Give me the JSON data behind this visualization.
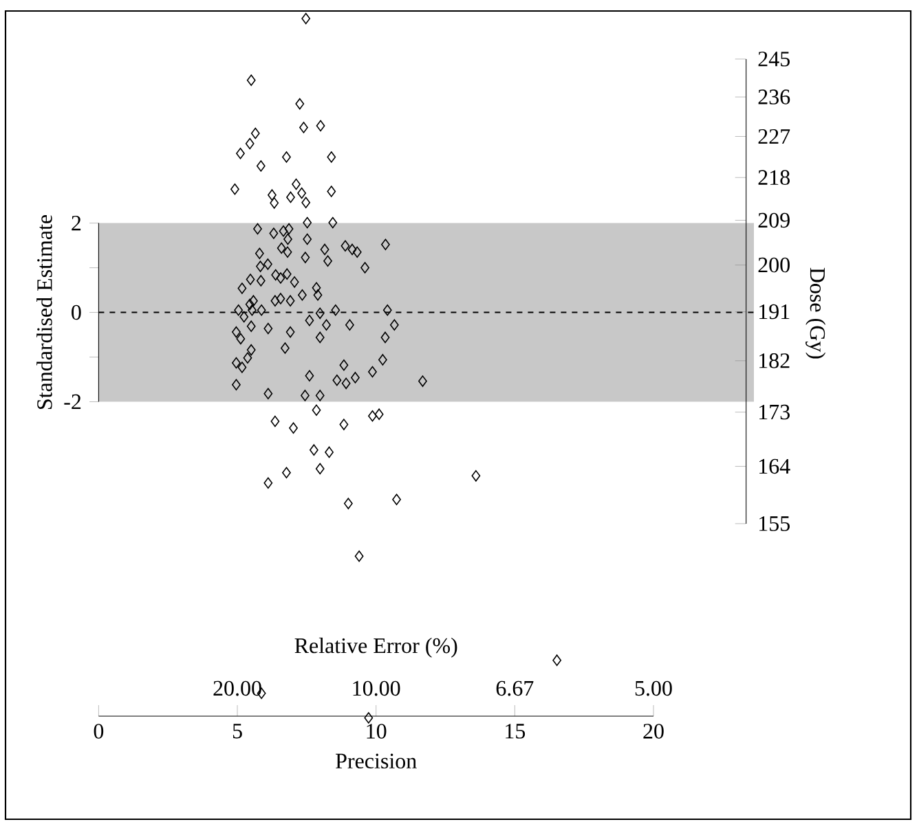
{
  "chart_data": {
    "type": "scatter",
    "xlabel": "Precision",
    "ylabel": "Standardised Estimate",
    "y2label": "Dose (Gy)",
    "annotations": [
      "Relative Error (%)",
      "20.00",
      "10.00",
      "6.67",
      "5.00"
    ],
    "xlim": [
      0,
      20
    ],
    "xticks": [
      0,
      5,
      10,
      15,
      20
    ],
    "ylim": [
      -11.35,
      6.75
    ],
    "yticks": [
      -2,
      {
        "value": -1,
        "label": null
      },
      0,
      {
        "value": 1,
        "label": null
      },
      2
    ],
    "y2lim": [
      155,
      245
    ],
    "y2ticks": [
      155,
      164,
      173,
      182,
      191,
      200,
      209,
      218,
      227,
      236,
      245
    ],
    "log": "y2",
    "marker": "diamond",
    "color": "#000000",
    "bands": [
      {
        "axis": "y",
        "from": -2,
        "to": 2,
        "color": "#c8c8c8"
      }
    ],
    "ref_lines": [
      {
        "axis": "y",
        "value": 0,
        "line_style": "dashed",
        "color": "#000000"
      }
    ],
    "x": [
      7.47,
      5.5,
      7.25,
      7.39,
      8.0,
      5.65,
      5.45,
      5.11,
      6.77,
      8.39,
      5.85,
      4.91,
      6.25,
      6.33,
      7.12,
      6.92,
      7.32,
      7.47,
      8.39,
      7.52,
      8.44,
      5.73,
      6.31,
      6.66,
      6.86,
      6.82,
      7.52,
      6.59,
      6.81,
      5.8,
      7.45,
      8.15,
      8.26,
      8.89,
      9.14,
      9.32,
      10.34,
      9.6,
      5.83,
      6.1,
      6.38,
      6.56,
      6.79,
      7.06,
      5.47,
      5.85,
      5.17,
      7.85,
      7.9,
      7.34,
      5.58,
      6.36,
      6.56,
      6.91,
      5.45,
      5.04,
      5.53,
      5.87,
      5.24,
      7.98,
      8.54,
      10.41,
      7.6,
      8.21,
      9.05,
      10.66,
      5.5,
      6.11,
      6.91,
      4.96,
      5.12,
      7.98,
      10.33,
      6.72,
      5.5,
      5.37,
      10.24,
      4.96,
      5.17,
      8.84,
      7.6,
      9.87,
      8.59,
      8.92,
      9.25,
      4.96,
      11.68,
      6.11,
      7.44,
      7.98,
      7.85,
      6.36,
      7.02,
      8.84,
      9.87,
      10.11,
      7.76,
      8.31,
      7.98,
      6.77,
      6.11,
      9.0,
      10.74,
      9.39,
      13.6,
      16.52,
      5.87,
      9.73
    ],
    "values": [
      6.58,
      5.2,
      4.67,
      4.14,
      4.18,
      4.01,
      3.78,
      3.56,
      3.48,
      3.48,
      3.28,
      2.76,
      2.63,
      2.45,
      2.87,
      2.58,
      2.67,
      2.46,
      2.71,
      2.01,
      2.01,
      1.87,
      1.77,
      1.82,
      1.87,
      1.64,
      1.64,
      1.44,
      1.35,
      1.32,
      1.23,
      1.41,
      1.15,
      1.49,
      1.41,
      1.35,
      1.52,
      1.0,
      1.03,
      1.08,
      0.84,
      0.77,
      0.86,
      0.68,
      0.74,
      0.71,
      0.54,
      0.55,
      0.39,
      0.39,
      0.26,
      0.26,
      0.31,
      0.26,
      0.18,
      0.05,
      0.05,
      0.05,
      -0.1,
      -0.02,
      0.05,
      0.05,
      -0.18,
      -0.28,
      -0.28,
      -0.28,
      -0.31,
      -0.36,
      -0.44,
      -0.44,
      -0.59,
      -0.56,
      -0.56,
      -0.8,
      -0.84,
      -1.02,
      -1.06,
      -1.13,
      -1.23,
      -1.18,
      -1.42,
      -1.33,
      -1.52,
      -1.59,
      -1.46,
      -1.62,
      -1.54,
      -1.82,
      -1.86,
      -1.86,
      -2.19,
      -2.44,
      -2.59,
      -2.51,
      -2.32,
      -2.28,
      -3.08,
      -3.13,
      -3.5,
      -3.59,
      -3.82,
      -4.28,
      -4.19,
      -5.46,
      -3.66,
      -7.79,
      -8.53,
      -9.08
    ]
  }
}
